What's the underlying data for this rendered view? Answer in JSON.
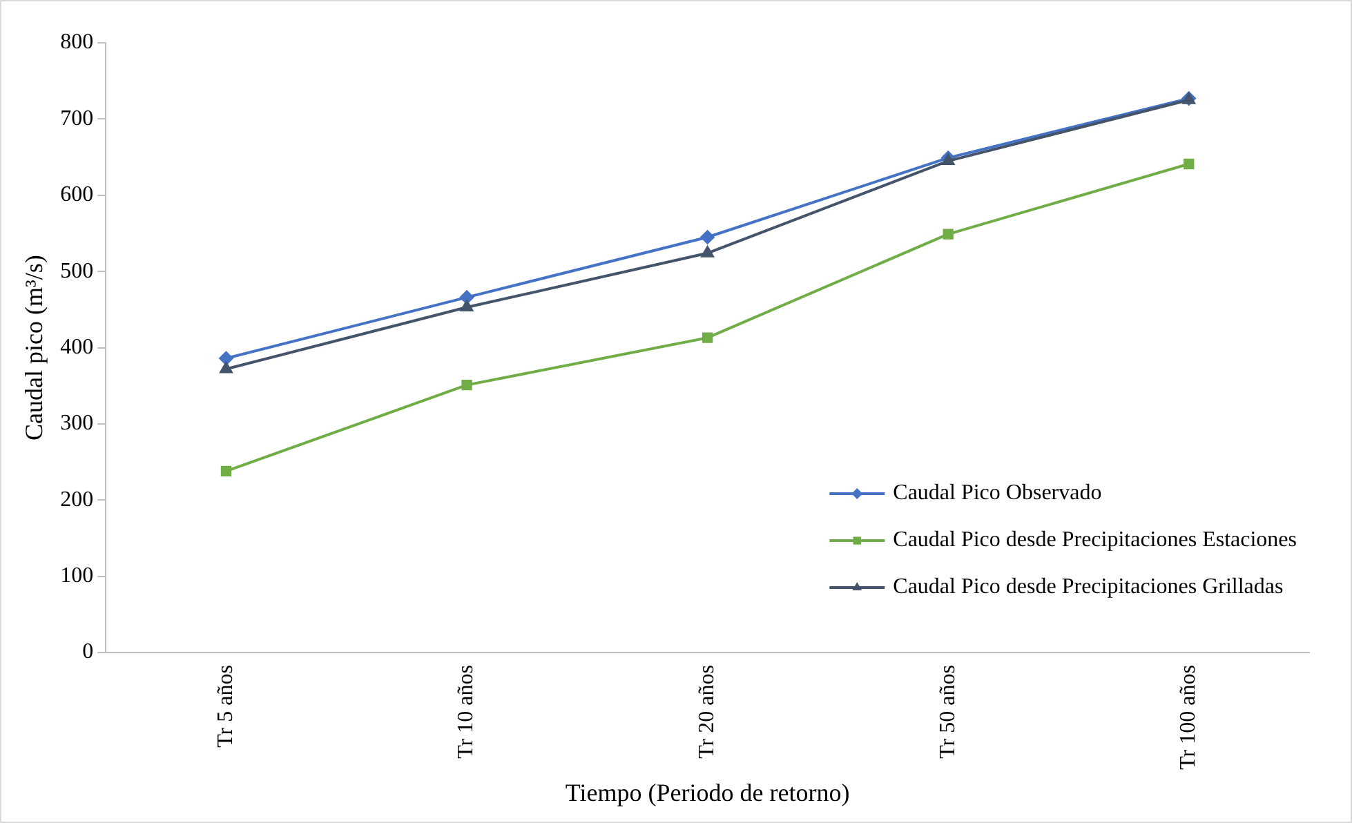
{
  "chart_data": {
    "type": "line",
    "xlabel": "Tiempo (Periodo de retorno)",
    "ylabel": "Caudal pico (m³/s)",
    "categories": [
      "Tr 5 años",
      "Tr 10 años",
      "Tr 20 años",
      "Tr 50 años",
      "Tr 100 años"
    ],
    "series": [
      {
        "name": "Caudal Pico Observado",
        "color": "#4472c4",
        "marker": "diamond",
        "values": [
          386,
          466,
          545,
          649,
          727
        ]
      },
      {
        "name": "Caudal Pico desde Precipitaciones Estaciones",
        "color": "#70ad47",
        "marker": "square",
        "values": [
          238,
          351,
          413,
          549,
          641
        ]
      },
      {
        "name": "Caudal Pico desde Precipitaciones Grilladas",
        "color": "#44546a",
        "marker": "triangle",
        "values": [
          372,
          453,
          524,
          645,
          725
        ]
      }
    ],
    "ylim": [
      0,
      800
    ],
    "yticks": [
      0,
      100,
      200,
      300,
      400,
      500,
      600,
      700,
      800
    ],
    "grid": false,
    "legend": "bottom right",
    "line_style": "solid"
  }
}
